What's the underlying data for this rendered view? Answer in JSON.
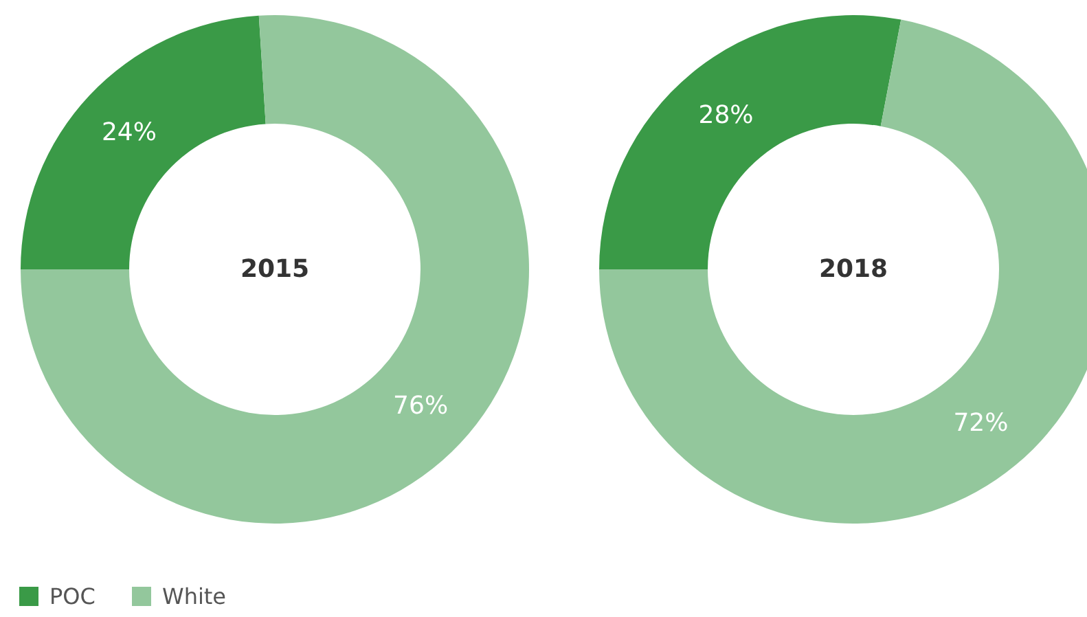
{
  "chart_data": [
    {
      "type": "donut",
      "title": "2015",
      "categories": [
        "POC",
        "White"
      ],
      "values": [
        24,
        76
      ],
      "colors": [
        "#3a9a47",
        "#93c79c"
      ],
      "value_labels": [
        "24%",
        "76%"
      ],
      "legend": "bottom left"
    },
    {
      "type": "donut",
      "title": "2018",
      "categories": [
        null,
        null
      ],
      "values": [
        28,
        72
      ],
      "colors": [
        "#3a9a47",
        "#93c79c"
      ],
      "value_labels": [
        "28%",
        "72%"
      ]
    }
  ]
}
